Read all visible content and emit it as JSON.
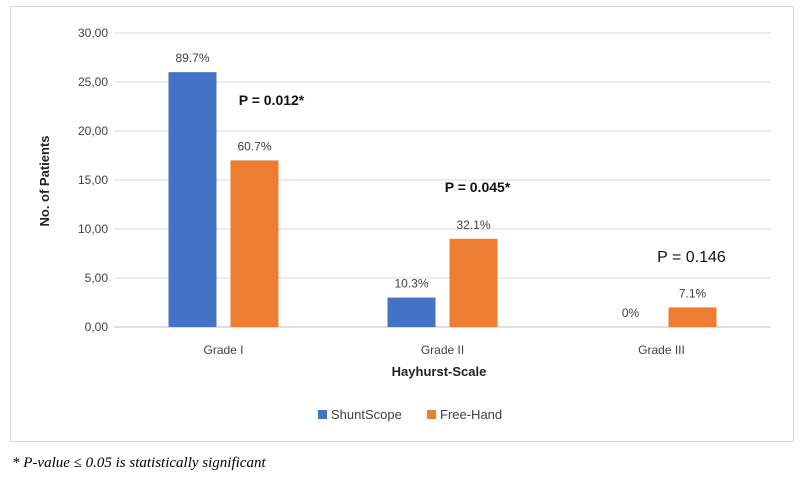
{
  "chart_data": {
    "type": "bar",
    "xlabel": "Hayhurst-Scale",
    "ylabel": "No. of Patients",
    "ylim": [
      0,
      30
    ],
    "yticks": [
      0,
      5,
      10,
      15,
      20,
      25,
      30
    ],
    "ytick_labels": [
      "0,00",
      "5,00",
      "10,00",
      "15,00",
      "20,00",
      "25,00",
      "30,00"
    ],
    "categories": [
      "Grade I",
      "Grade II",
      "Grade III"
    ],
    "series": [
      {
        "name": "ShuntScope",
        "color": "#4472C4",
        "values": [
          26,
          3,
          0
        ],
        "labels": [
          "89.7%",
          "10.3%",
          "0%"
        ]
      },
      {
        "name": "Free-Hand",
        "color": "#ED7D31",
        "values": [
          17,
          9,
          2
        ],
        "labels": [
          "60.7%",
          "32.1%",
          "7.1%"
        ]
      }
    ],
    "annotations": [
      {
        "category": "Grade I",
        "text": "P = 0.012*",
        "bold": true
      },
      {
        "category": "Grade II",
        "text": "P = 0.045*",
        "bold": true
      },
      {
        "category": "Grade III",
        "text": "P = 0.146",
        "bold": false
      }
    ],
    "grid": true,
    "legend": "bottom-center"
  },
  "footnote": "* P-value ≤ 0.05 is statistically significant"
}
